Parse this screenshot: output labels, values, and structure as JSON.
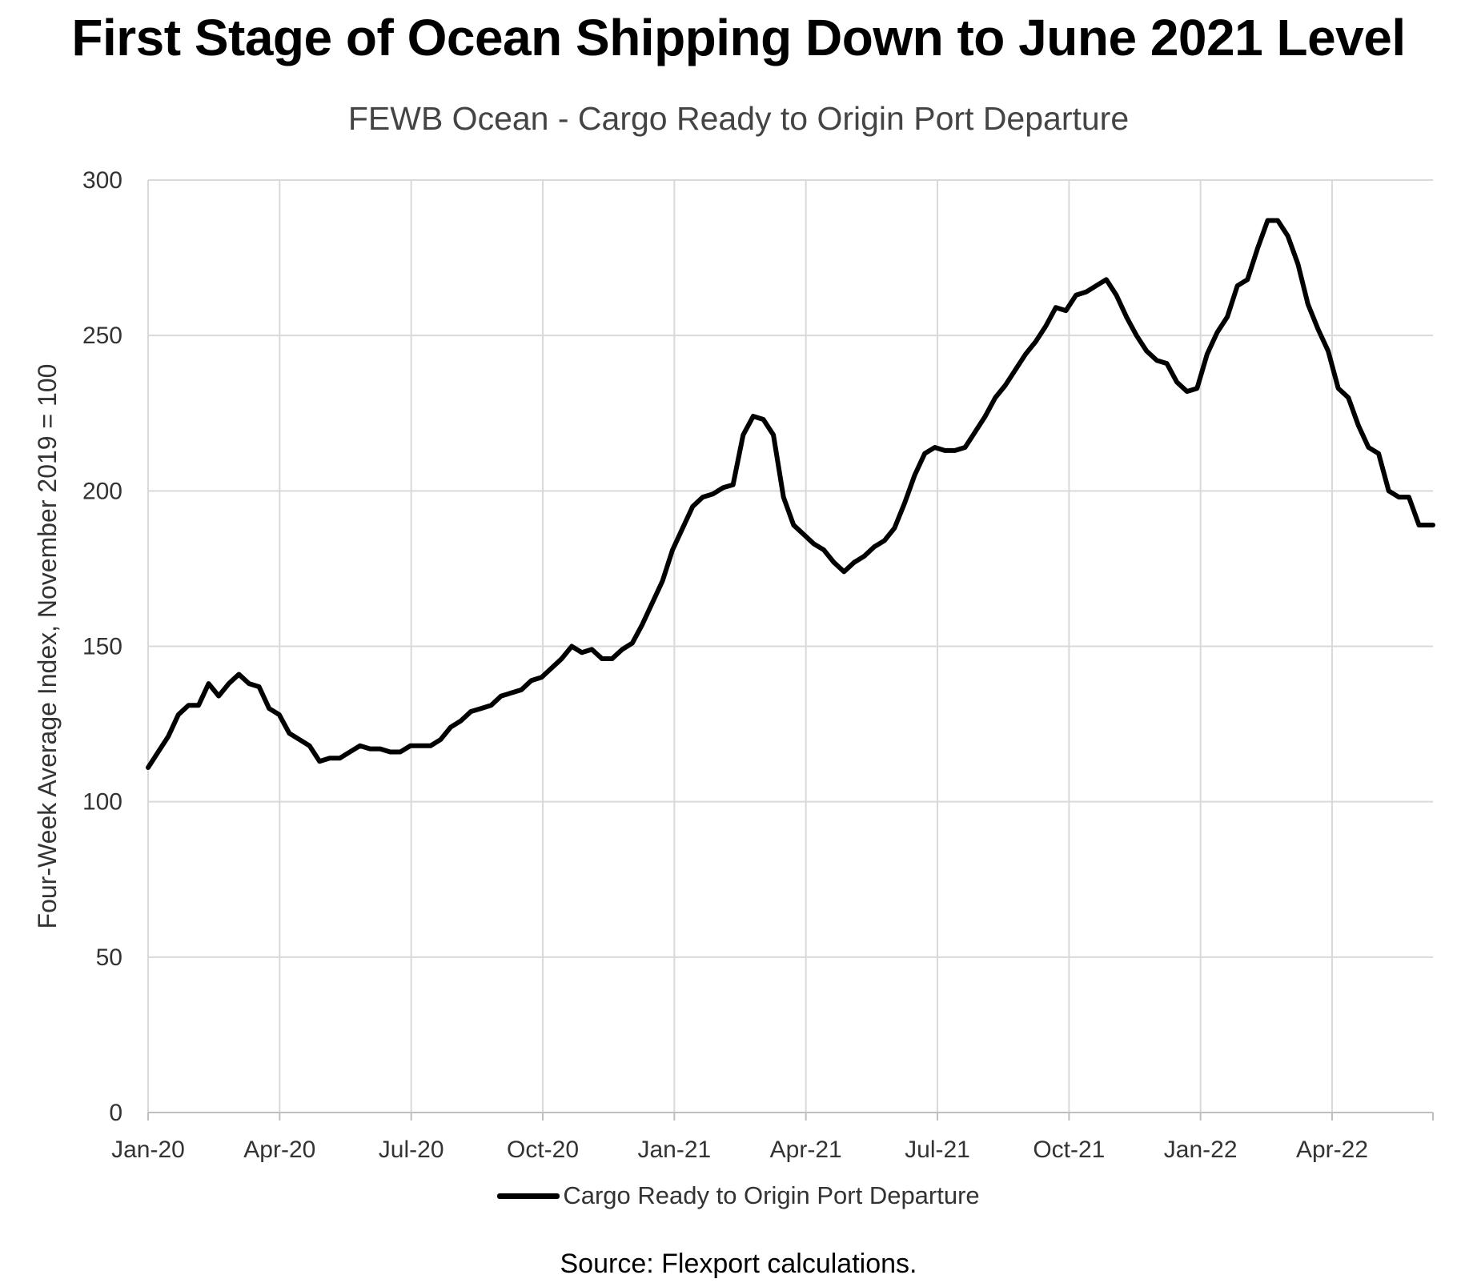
{
  "title": "First Stage of Ocean Shipping Down to June 2021 Level",
  "subtitle": "FEWB Ocean - Cargo Ready to Origin Port Departure",
  "source": "Source: Flexport calculations.",
  "colors": {
    "line": "#000000",
    "grid": "#d9d9d9",
    "axis": "#bfbfbf"
  },
  "chart_data": {
    "type": "line",
    "title": "FEWB Ocean - Cargo Ready to Origin Port Departure",
    "ylabel": "Four-Week Average Index, November 2019 = 100",
    "xlabel": "",
    "ylim": [
      0,
      300
    ],
    "yticks": [
      0,
      50,
      100,
      150,
      200,
      250,
      300
    ],
    "xlim": [
      0,
      29.3
    ],
    "xticks": [
      {
        "label": "Jan-20",
        "month": 0
      },
      {
        "label": "Apr-20",
        "month": 3
      },
      {
        "label": "Jul-20",
        "month": 6
      },
      {
        "label": "Oct-20",
        "month": 9
      },
      {
        "label": "Jan-21",
        "month": 12
      },
      {
        "label": "Apr-21",
        "month": 15
      },
      {
        "label": "Jul-21",
        "month": 18
      },
      {
        "label": "Oct-21",
        "month": 21
      },
      {
        "label": "Jan-22",
        "month": 24
      },
      {
        "label": "Apr-22",
        "month": 27
      }
    ],
    "grid": true,
    "legend_position": "bottom-center",
    "series": [
      {
        "name": "Cargo Ready to Origin Port Departure",
        "x": [
          0.0,
          0.23,
          0.46,
          0.69,
          0.92,
          1.15,
          1.38,
          1.61,
          1.84,
          2.07,
          2.3,
          2.53,
          2.76,
          2.99,
          3.22,
          3.45,
          3.68,
          3.91,
          4.14,
          4.37,
          4.6,
          4.83,
          5.06,
          5.29,
          5.52,
          5.75,
          5.98,
          6.21,
          6.44,
          6.67,
          6.9,
          7.13,
          7.36,
          7.59,
          7.82,
          8.05,
          8.28,
          8.51,
          8.74,
          8.97,
          9.2,
          9.43,
          9.66,
          9.89,
          10.12,
          10.35,
          10.58,
          10.81,
          11.04,
          11.27,
          11.5,
          11.73,
          11.96,
          12.19,
          12.42,
          12.65,
          12.88,
          13.11,
          13.34,
          13.57,
          13.8,
          14.03,
          14.26,
          14.49,
          14.72,
          14.95,
          15.18,
          15.41,
          15.64,
          15.87,
          16.1,
          16.33,
          16.56,
          16.79,
          17.02,
          17.25,
          17.48,
          17.71,
          17.94,
          18.17,
          18.4,
          18.63,
          18.86,
          19.09,
          19.32,
          19.55,
          19.78,
          20.01,
          20.24,
          20.47,
          20.7,
          20.93,
          21.16,
          21.39,
          21.62,
          21.85,
          22.08,
          22.31,
          22.54,
          22.77,
          23.0,
          23.23,
          23.46,
          23.69,
          23.92,
          24.15,
          24.38,
          24.61,
          24.84,
          25.07,
          25.3,
          25.53,
          25.76,
          25.99,
          26.22,
          26.45,
          26.68,
          26.91,
          27.14,
          27.37,
          27.6,
          27.83,
          28.06,
          28.29,
          28.52,
          28.75,
          28.98,
          29.21,
          29.3
        ],
        "values": [
          111,
          116,
          121,
          128,
          131,
          131,
          138,
          134,
          138,
          141,
          138,
          137,
          130,
          128,
          122,
          120,
          118,
          113,
          114,
          114,
          116,
          118,
          117,
          117,
          116,
          116,
          118,
          118,
          118,
          120,
          124,
          126,
          129,
          130,
          131,
          134,
          135,
          136,
          139,
          140,
          143,
          146,
          150,
          148,
          149,
          146,
          146,
          149,
          151,
          157,
          164,
          171,
          181,
          188,
          195,
          198,
          199,
          201,
          202,
          218,
          224,
          223,
          218,
          198,
          189,
          186,
          183,
          181,
          177,
          174,
          177,
          179,
          182,
          184,
          188,
          196,
          205,
          212,
          214,
          213,
          213,
          214,
          219,
          224,
          230,
          234,
          239,
          244,
          248,
          253,
          259,
          258,
          263,
          264,
          266,
          268,
          263,
          256,
          250,
          245,
          242,
          241,
          235,
          232,
          233,
          244,
          251,
          256,
          266,
          268,
          278,
          287,
          287,
          282,
          273,
          260,
          252,
          245,
          233,
          230,
          221,
          214,
          212,
          200,
          198,
          198,
          189,
          189,
          189
        ]
      }
    ]
  }
}
